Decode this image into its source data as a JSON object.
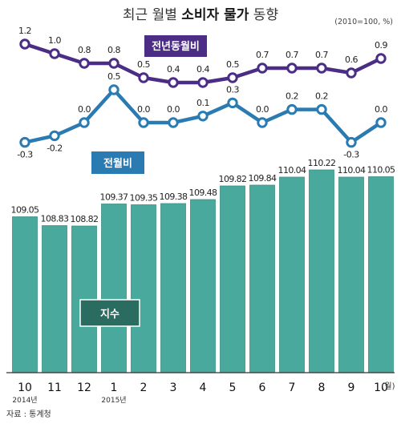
{
  "title": {
    "light_before": "최근 월별 ",
    "bold": "소비자 물가",
    "light_after": " 동향"
  },
  "unit_note": "(2010=100, %)",
  "month_unit": "(월)",
  "source": "자료 : 통계청",
  "colors": {
    "bar": "#4aa99d",
    "bar_stroke": "#3d9085",
    "yoy_line": "#4b2d86",
    "mom_line": "#2b7bb3",
    "index_legend": "#2a6c5f",
    "baseline": "#333333"
  },
  "chart_data": [
    {
      "type": "bar",
      "categories": [
        "10",
        "11",
        "12",
        "1",
        "2",
        "3",
        "4",
        "5",
        "6",
        "7",
        "8",
        "9",
        "10"
      ],
      "category_sublabels": [
        "2014년",
        "",
        "",
        "2015년",
        "",
        "",
        "",
        "",
        "",
        "",
        "",
        "",
        ""
      ],
      "series": [
        {
          "name": "지수",
          "values": [
            109.05,
            108.83,
            108.82,
            109.37,
            109.35,
            109.38,
            109.48,
            109.82,
            109.84,
            110.04,
            110.22,
            110.04,
            110.05
          ],
          "labels": [
            "109.05",
            "108.83",
            "108.82",
            "109.37",
            "109.35",
            "109.38",
            "109.48",
            "109.82",
            "109.84",
            "110.04",
            "110.22",
            "110.04",
            "110.05"
          ]
        }
      ]
    },
    {
      "type": "line",
      "categories": [
        "10",
        "11",
        "12",
        "1",
        "2",
        "3",
        "4",
        "5",
        "6",
        "7",
        "8",
        "9",
        "10"
      ],
      "series": [
        {
          "name": "전년동월비",
          "values": [
            1.2,
            1.0,
            0.8,
            0.8,
            0.5,
            0.4,
            0.4,
            0.5,
            0.7,
            0.7,
            0.7,
            0.6,
            0.9
          ],
          "labels": [
            "1.2",
            "1.0",
            "0.8",
            "0.8",
            "0.5",
            "0.4",
            "0.4",
            "0.5",
            "0.7",
            "0.7",
            "0.7",
            "0.6",
            "0.9"
          ]
        },
        {
          "name": "전월비",
          "values": [
            -0.3,
            -0.2,
            0.0,
            0.5,
            0.0,
            0.0,
            0.1,
            0.3,
            0.0,
            0.2,
            0.2,
            -0.3,
            0.0
          ],
          "labels": [
            "-0.3",
            "-0.2",
            "0.0",
            "0.5",
            "0.0",
            "0.0",
            "0.1",
            "0.3",
            "0.0",
            "0.2",
            "0.2",
            "-0.3",
            "0.0"
          ]
        }
      ]
    }
  ]
}
